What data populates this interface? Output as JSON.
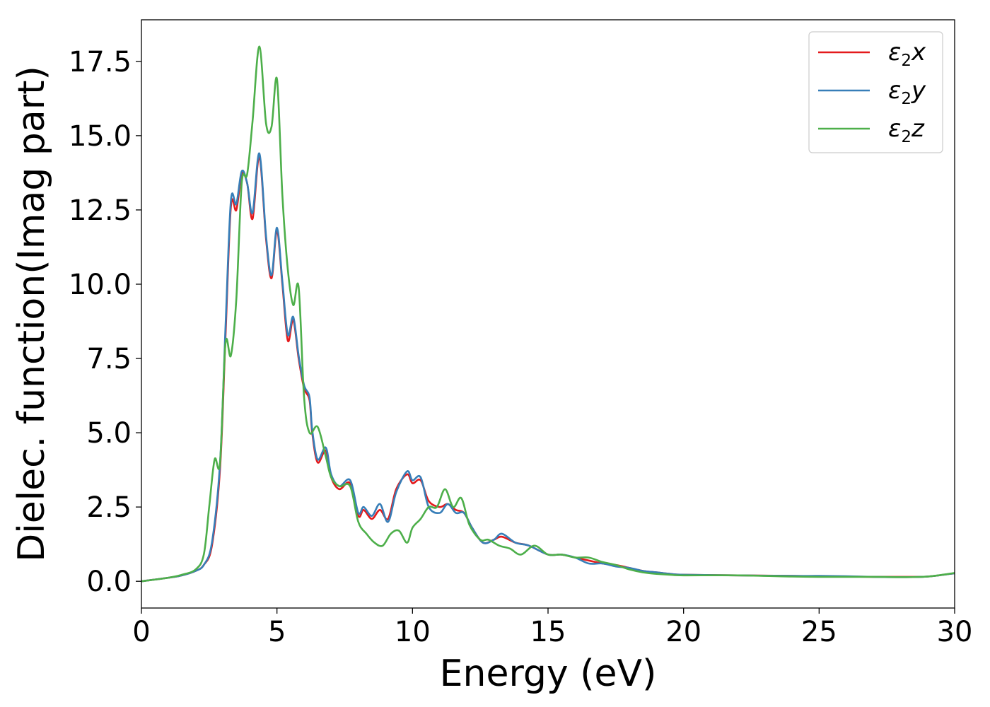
{
  "chart_data": {
    "type": "line",
    "title": "",
    "xlabel": "Energy (eV)",
    "ylabel": "Dielec. function(Imag part)",
    "xlim": [
      0,
      30
    ],
    "ylim": [
      -0.9,
      18.9
    ],
    "xticks": [
      0,
      5,
      10,
      15,
      20,
      25,
      30
    ],
    "xtick_labels": [
      "0",
      "5",
      "10",
      "15",
      "20",
      "25",
      "30"
    ],
    "yticks": [
      0.0,
      2.5,
      5.0,
      7.5,
      10.0,
      12.5,
      15.0,
      17.5
    ],
    "ytick_labels": [
      "0.0",
      "2.5",
      "5.0",
      "7.5",
      "10.0",
      "12.5",
      "15.0",
      "17.5"
    ],
    "grid": false,
    "legend_position": "top-right",
    "series": [
      {
        "name": "ε₂x",
        "legend_symbol": "ε",
        "legend_subscript": "2",
        "legend_suffix": "x",
        "color": "#e41a1c",
        "x": [
          0,
          1,
          1.5,
          2,
          2.3,
          2.6,
          2.9,
          3.1,
          3.3,
          3.5,
          3.7,
          3.9,
          4.1,
          4.35,
          4.6,
          4.8,
          5.0,
          5.2,
          5.4,
          5.6,
          5.8,
          6.0,
          6.2,
          6.3,
          6.5,
          6.8,
          7.0,
          7.3,
          7.7,
          8.0,
          8.2,
          8.5,
          8.8,
          9.1,
          9.4,
          9.8,
          10.0,
          10.3,
          10.6,
          11.0,
          11.3,
          11.6,
          11.9,
          12.2,
          12.6,
          13.0,
          13.3,
          13.8,
          14.3,
          15.0,
          15.5,
          16.0,
          16.5,
          17.0,
          17.5,
          18.0,
          18.5,
          19.0,
          19.5,
          20,
          22,
          24,
          25,
          26,
          27,
          28,
          29,
          30
        ],
        "y": [
          0,
          0.12,
          0.2,
          0.35,
          0.55,
          1.2,
          3.8,
          8.2,
          12.6,
          12.5,
          13.7,
          13.4,
          12.2,
          14.3,
          11.5,
          10.2,
          11.8,
          10.0,
          8.1,
          8.8,
          7.5,
          6.5,
          6.1,
          5.0,
          4.0,
          4.4,
          3.5,
          3.1,
          3.3,
          2.2,
          2.4,
          2.1,
          2.4,
          2.1,
          3.1,
          3.6,
          3.3,
          3.4,
          2.7,
          2.5,
          2.6,
          2.4,
          2.3,
          1.8,
          1.3,
          1.4,
          1.5,
          1.3,
          1.2,
          0.9,
          0.9,
          0.8,
          0.7,
          0.6,
          0.55,
          0.45,
          0.35,
          0.3,
          0.25,
          0.22,
          0.2,
          0.18,
          0.17,
          0.16,
          0.15,
          0.15,
          0.16,
          0.27
        ]
      },
      {
        "name": "ε₂y",
        "legend_symbol": "ε",
        "legend_subscript": "2",
        "legend_suffix": "y",
        "color": "#377eb8",
        "x": [
          0,
          1,
          1.5,
          2,
          2.3,
          2.6,
          2.9,
          3.1,
          3.3,
          3.5,
          3.7,
          3.9,
          4.1,
          4.35,
          4.6,
          4.8,
          5.0,
          5.2,
          5.4,
          5.6,
          5.8,
          6.0,
          6.2,
          6.3,
          6.5,
          6.8,
          7.0,
          7.3,
          7.7,
          8.0,
          8.2,
          8.5,
          8.8,
          9.1,
          9.4,
          9.8,
          10.0,
          10.3,
          10.6,
          11.0,
          11.3,
          11.6,
          11.9,
          12.2,
          12.6,
          13.0,
          13.3,
          13.8,
          14.3,
          15.0,
          15.5,
          16.0,
          16.5,
          17.0,
          17.5,
          18.0,
          18.5,
          19.0,
          19.5,
          20,
          22,
          24,
          25,
          26,
          27,
          28,
          29,
          30
        ],
        "y": [
          0,
          0.12,
          0.2,
          0.35,
          0.55,
          1.3,
          4.0,
          8.5,
          12.8,
          12.7,
          13.8,
          13.4,
          12.4,
          14.4,
          11.6,
          10.3,
          11.9,
          10.1,
          8.3,
          8.9,
          7.6,
          6.6,
          6.2,
          5.1,
          4.1,
          4.5,
          3.6,
          3.2,
          3.4,
          2.3,
          2.5,
          2.2,
          2.6,
          2.0,
          3.0,
          3.7,
          3.4,
          3.5,
          2.5,
          2.3,
          2.6,
          2.3,
          2.3,
          1.8,
          1.3,
          1.4,
          1.6,
          1.3,
          1.2,
          0.9,
          0.9,
          0.8,
          0.6,
          0.6,
          0.5,
          0.45,
          0.35,
          0.3,
          0.25,
          0.22,
          0.2,
          0.18,
          0.18,
          0.17,
          0.15,
          0.14,
          0.16,
          0.27
        ]
      },
      {
        "name": "ε₂z",
        "legend_symbol": "ε",
        "legend_subscript": "2",
        "legend_suffix": "z",
        "color": "#4daf4a",
        "x": [
          0,
          1,
          1.5,
          2,
          2.3,
          2.5,
          2.7,
          2.9,
          3.1,
          3.3,
          3.5,
          3.7,
          3.9,
          4.1,
          4.35,
          4.6,
          4.8,
          5.0,
          5.2,
          5.4,
          5.6,
          5.8,
          6.0,
          6.2,
          6.5,
          6.8,
          7.0,
          7.3,
          7.7,
          8.0,
          8.3,
          8.6,
          8.9,
          9.2,
          9.5,
          9.8,
          10.0,
          10.3,
          10.6,
          10.9,
          11.2,
          11.5,
          11.8,
          12.1,
          12.5,
          12.8,
          13.2,
          13.6,
          14.0,
          14.5,
          15.0,
          15.5,
          16.0,
          16.5,
          17.0,
          17.5,
          18.0,
          18.5,
          19.0,
          19.5,
          20,
          22,
          24,
          25,
          26,
          27,
          28,
          29,
          30
        ],
        "y": [
          0,
          0.12,
          0.22,
          0.4,
          0.9,
          2.5,
          4.1,
          4.0,
          8.0,
          7.6,
          9.5,
          13.4,
          13.7,
          15.5,
          18.0,
          15.4,
          15.3,
          16.9,
          13.0,
          10.5,
          9.3,
          9.9,
          6.2,
          5.0,
          5.2,
          4.2,
          3.5,
          3.2,
          3.2,
          2.0,
          1.6,
          1.3,
          1.2,
          1.6,
          1.7,
          1.3,
          1.8,
          2.1,
          2.5,
          2.5,
          3.1,
          2.5,
          2.8,
          1.9,
          1.4,
          1.4,
          1.2,
          1.1,
          0.9,
          1.2,
          0.9,
          0.9,
          0.8,
          0.8,
          0.65,
          0.55,
          0.4,
          0.3,
          0.25,
          0.22,
          0.2,
          0.2,
          0.16,
          0.15,
          0.15,
          0.15,
          0.14,
          0.16,
          0.28
        ]
      }
    ]
  }
}
